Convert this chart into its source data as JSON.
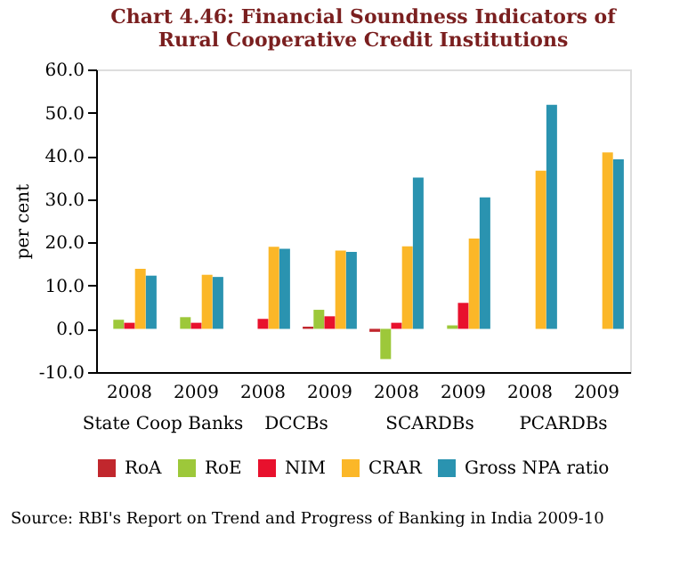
{
  "chart_data": {
    "type": "bar",
    "title": "Chart 4.46: Financial Soundness Indicators of Rural Cooperative Credit Institutions",
    "categories": [
      "2008",
      "2009",
      "2008",
      "2009",
      "2008",
      "2009",
      "2008",
      "2009"
    ],
    "series": [
      {
        "name": "RoA",
        "color": "#c1272d",
        "values": [
          null,
          null,
          null,
          0.5,
          -0.7,
          null,
          null,
          null
        ]
      },
      {
        "name": "RoE",
        "color": "#9dc83a",
        "values": [
          2.1,
          2.7,
          null,
          4.4,
          -7.0,
          0.8,
          null,
          null
        ]
      },
      {
        "name": "NIM",
        "color": "#e8112d",
        "values": [
          1.4,
          1.4,
          2.3,
          2.9,
          1.4,
          6.0,
          null,
          null
        ]
      },
      {
        "name": "CRAR",
        "color": "#fbb728",
        "values": [
          13.9,
          12.5,
          19.0,
          18.1,
          19.1,
          20.9,
          36.6,
          40.8
        ]
      },
      {
        "name": "Gross NPA ratio",
        "color": "#2a93b0",
        "values": [
          12.3,
          12.0,
          18.5,
          17.8,
          35.0,
          30.4,
          51.8,
          39.2
        ]
      }
    ],
    "ylabel": "per cent",
    "ylim": [
      -10,
      60
    ],
    "yticks": [
      {
        "value": -10,
        "label": "-10.0"
      },
      {
        "value": 0,
        "label": "0.0"
      },
      {
        "value": 10,
        "label": "10.0"
      },
      {
        "value": 20,
        "label": "20.0"
      },
      {
        "value": 30,
        "label": "30.0"
      },
      {
        "value": 40,
        "label": "40.0"
      },
      {
        "value": 50,
        "label": "50.0"
      },
      {
        "value": 60,
        "label": "60.0"
      }
    ],
    "annotations": [
      "State Coop Banks",
      "DCCBs",
      "SCARDBs",
      "PCARDBs",
      "Source: RBI's Report on Trend and Progress of Banking in India 2009-10"
    ],
    "grid": false,
    "legend": "bottom"
  }
}
